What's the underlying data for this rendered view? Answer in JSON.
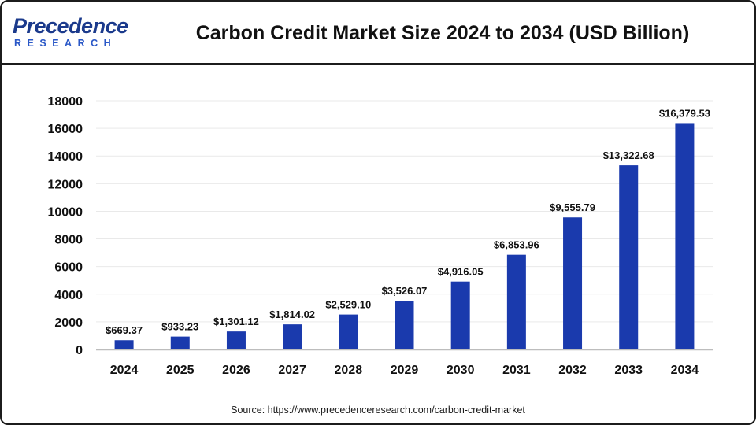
{
  "header": {
    "logo_main": "Precedence",
    "logo_sub": "RESEARCH",
    "title": "Carbon Credit Market Size 2024 to 2034 (USD Billion)"
  },
  "source": "Source: https://www.precedenceresearch.com/carbon-credit-market",
  "colors": {
    "bar": "#1a3aad",
    "frame": "#1c1c1c",
    "grid": "#e9e9e9",
    "logo_dark": "#1b3a8c",
    "logo_light": "#2a58c7"
  },
  "chart_data": {
    "type": "bar",
    "title": "Carbon Credit Market Size 2024 to 2034 (USD Billion)",
    "xlabel": "",
    "ylabel": "",
    "categories": [
      "2024",
      "2025",
      "2026",
      "2027",
      "2028",
      "2029",
      "2030",
      "2031",
      "2032",
      "2033",
      "2034"
    ],
    "values": [
      669.37,
      933.23,
      1301.12,
      1814.02,
      2529.1,
      3526.07,
      4916.05,
      6853.96,
      9555.79,
      13322.68,
      16379.53
    ],
    "data_labels": [
      "$669.37",
      "$933.23",
      "$1,301.12",
      "$1,814.02",
      "$2,529.10",
      "$3,526.07",
      "$4,916.05",
      "$6,853.96",
      "$9,555.79",
      "$13,322.68",
      "$16,379.53"
    ],
    "ylim": [
      0,
      18000
    ],
    "yticks": [
      "0",
      "2000",
      "4000",
      "6000",
      "8000",
      "10000",
      "12000",
      "14000",
      "16000",
      "18000"
    ],
    "grid": true,
    "legend": "none"
  }
}
